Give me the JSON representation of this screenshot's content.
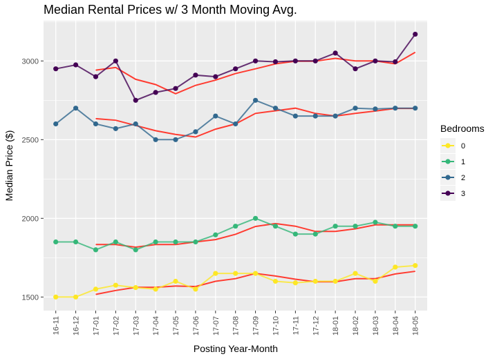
{
  "chart_data": {
    "type": "line",
    "title": "Median Rental Prices w/ 3 Month Moving Avg.",
    "xlabel": "Posting Year-Month",
    "ylabel": "Median Price ($)",
    "ylim": [
      1455,
      3235
    ],
    "yticks": [
      1500,
      2000,
      2500,
      3000
    ],
    "grid": true,
    "legend": {
      "title": "Bedrooms",
      "placement": "right"
    },
    "categories": [
      "16-11",
      "16-12",
      "17-01",
      "17-02",
      "17-03",
      "17-04",
      "17-05",
      "17-06",
      "17-07",
      "17-08",
      "17-09",
      "17-10",
      "17-11",
      "17-12",
      "18-01",
      "18-02",
      "18-03",
      "18-04",
      "18-05"
    ],
    "series": [
      {
        "name": "0",
        "color": "#FDE725",
        "values": [
          1500,
          1500,
          1550,
          1575,
          1560,
          1550,
          1600,
          1550,
          1650,
          1650,
          1650,
          1600,
          1590,
          1600,
          1600,
          1650,
          1600,
          1690,
          1700
        ]
      },
      {
        "name": "1",
        "color": "#35B779",
        "values": [
          1850,
          1850,
          1800,
          1850,
          1800,
          1850,
          1850,
          1850,
          1895,
          1950,
          2000,
          1950,
          1900,
          1900,
          1950,
          1950,
          1975,
          1950,
          1950
        ]
      },
      {
        "name": "2",
        "color": "#31688E",
        "values": [
          2600,
          2700,
          2600,
          2570,
          2600,
          2500,
          2500,
          2550,
          2650,
          2600,
          2750,
          2700,
          2650,
          2650,
          2650,
          2700,
          2695,
          2700,
          2700
        ]
      },
      {
        "name": "3",
        "color": "#440154",
        "values": [
          2950,
          2975,
          2900,
          3000,
          2750,
          2800,
          2825,
          2910,
          2900,
          2950,
          3000,
          2995,
          3000,
          3000,
          3050,
          2950,
          3000,
          2995,
          3170
        ]
      }
    ],
    "moving_average": {
      "window": 3,
      "color": "#FF3B30"
    }
  }
}
